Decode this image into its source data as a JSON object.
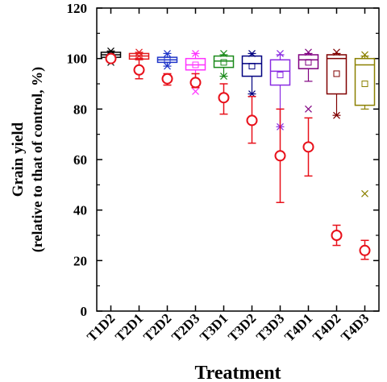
{
  "chart_data": {
    "type": "box",
    "xlabel": "Treatment",
    "ylabel_line1": "Grain yield",
    "ylabel_line2": "(relative to that of control, %)",
    "ylim": [
      0,
      120
    ],
    "yticks": [
      0,
      20,
      40,
      60,
      80,
      100,
      120
    ],
    "categories": [
      "T1D2",
      "T2D1",
      "T2D2",
      "T2D3",
      "T3D1",
      "T3D2",
      "T3D3",
      "T4D1",
      "T4D2",
      "T4D3"
    ],
    "colors": [
      "#000000",
      "#e31a1c",
      "#1f35c9",
      "#ff33ff",
      "#1a8a1a",
      "#000080",
      "#8a2be2",
      "#800080",
      "#800000",
      "#8b8000"
    ],
    "circle_color": "#e8101a",
    "boxes": [
      {
        "q1": 100.5,
        "median": 101.5,
        "q3": 102.5,
        "mean": 101.5,
        "whisker_low": 100,
        "whisker_high": 103,
        "outliers": [
          103,
          98.5
        ]
      },
      {
        "q1": 99.8,
        "median": 101,
        "q3": 102,
        "mean": 101,
        "whisker_low": 99.5,
        "whisker_high": 102.5,
        "outliers": [
          102.5,
          101
        ]
      },
      {
        "q1": 98.5,
        "median": 99.5,
        "q3": 100.5,
        "mean": 99.5,
        "whisker_low": 97,
        "whisker_high": 102,
        "outliers": [
          102,
          97
        ]
      },
      {
        "q1": 95.5,
        "median": 97.5,
        "q3": 100,
        "mean": 97.5,
        "whisker_low": 91,
        "whisker_high": 102,
        "outliers": [
          102,
          87
        ]
      },
      {
        "q1": 96.5,
        "median": 99,
        "q3": 101,
        "mean": 98.5,
        "whisker_low": 93,
        "whisker_high": 101.5,
        "outliers": [
          102,
          93
        ]
      },
      {
        "q1": 93,
        "median": 98,
        "q3": 101,
        "mean": 97,
        "whisker_low": 86,
        "whisker_high": 102,
        "outliers": [
          102,
          86
        ]
      },
      {
        "q1": 89.5,
        "median": 95,
        "q3": 99.5,
        "mean": 93.5,
        "whisker_low": 73,
        "whisker_high": 101.5,
        "outliers": [
          102,
          73
        ]
      },
      {
        "q1": 96,
        "median": 99.5,
        "q3": 101.5,
        "mean": 98.5,
        "whisker_low": 91,
        "whisker_high": 102,
        "outliers": [
          102.5,
          80
        ]
      },
      {
        "q1": 86,
        "median": 100,
        "q3": 101.5,
        "mean": 94,
        "whisker_low": 77.5,
        "whisker_high": 102,
        "outliers": [
          102.5,
          77.5
        ]
      },
      {
        "q1": 81.5,
        "median": 97.5,
        "q3": 100,
        "mean": 90,
        "whisker_low": 80,
        "whisker_high": 101,
        "outliers": [
          101.5,
          46.5
        ]
      }
    ],
    "circles": [
      {
        "mean": 100,
        "low": 100,
        "high": 100
      },
      {
        "mean": 95.5,
        "low": 92,
        "high": 100
      },
      {
        "mean": 92,
        "low": 89.5,
        "high": 94
      },
      {
        "mean": 90.5,
        "low": 88.5,
        "high": 94
      },
      {
        "mean": 84.5,
        "low": 78,
        "high": 90
      },
      {
        "mean": 75.5,
        "low": 66.5,
        "high": 85
      },
      {
        "mean": 61.5,
        "low": 43,
        "high": 80
      },
      {
        "mean": 65,
        "low": 53.5,
        "high": 76.5
      },
      {
        "mean": 30,
        "low": 26,
        "high": 34
      },
      {
        "mean": 24,
        "low": 20.5,
        "high": 28
      }
    ]
  }
}
